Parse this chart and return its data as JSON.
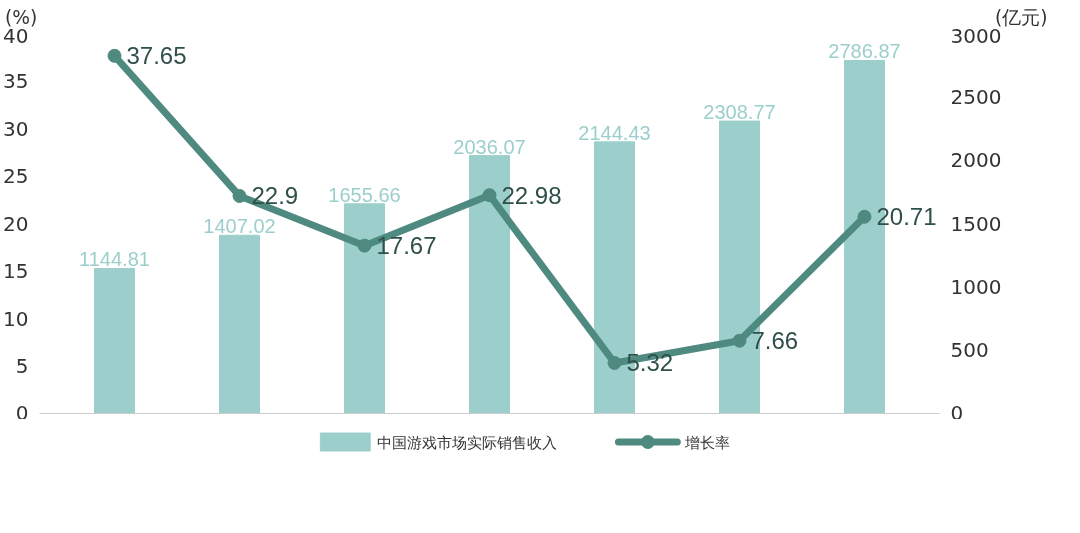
{
  "chart_data": {
    "type": "bar",
    "ylabel": "(%)",
    "y2label": "(亿元)",
    "categories": [
      null,
      null,
      null,
      null,
      null,
      null,
      null
    ],
    "series": [
      {
        "name": "中国游戏市场实际销售收入",
        "axis": "y2",
        "color": "#9ccfcb",
        "values": [
          1144.81,
          1407.02,
          1655.66,
          2036.07,
          2144.43,
          2308.77,
          2786.87
        ]
      },
      {
        "name": "增长率",
        "type": "line",
        "color": "#4e8a80",
        "values": [
          37.65,
          22.9,
          17.67,
          22.98,
          5.32,
          7.66,
          20.71
        ]
      }
    ],
    "ylim": [
      0,
      40
    ],
    "yticks": [
      0,
      5,
      10,
      15,
      20,
      25,
      30,
      35,
      40
    ],
    "y2lim": [
      0,
      3000
    ],
    "y2ticks": [
      0,
      500,
      1000,
      1500,
      2000,
      2500,
      3000
    ],
    "data_labels": true,
    "legend": "bottom",
    "grid": false,
    "marker": "circle",
    "line_style": "solid"
  }
}
